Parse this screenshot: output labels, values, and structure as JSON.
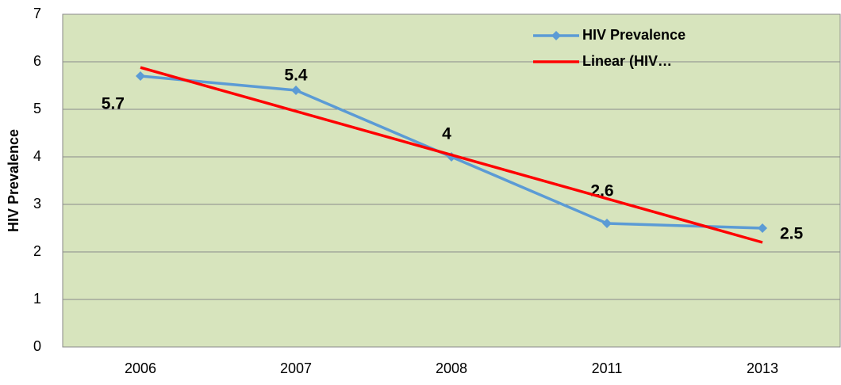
{
  "chart_data": {
    "type": "line",
    "y_axis_label": "HIV Prevalence",
    "categories": [
      "2006",
      "2007",
      "2008",
      "2011",
      "2013"
    ],
    "series": [
      {
        "name": "HIV Prevalence",
        "color": "#5b9bd5",
        "marker": "diamond",
        "data_labels": true,
        "values": [
          5.7,
          5.4,
          4,
          2.6,
          2.5
        ]
      },
      {
        "name": "Linear (HIV…",
        "color": "#ff0000",
        "marker": "none",
        "data_labels": false,
        "values": [
          5.88,
          4.96,
          4.04,
          3.12,
          2.2
        ]
      }
    ],
    "ylim": [
      0,
      7
    ],
    "yticks": [
      0,
      1,
      2,
      3,
      4,
      5,
      6,
      7
    ],
    "grid": true,
    "plot_background": "#d7e4bd",
    "legend": "top-right"
  }
}
